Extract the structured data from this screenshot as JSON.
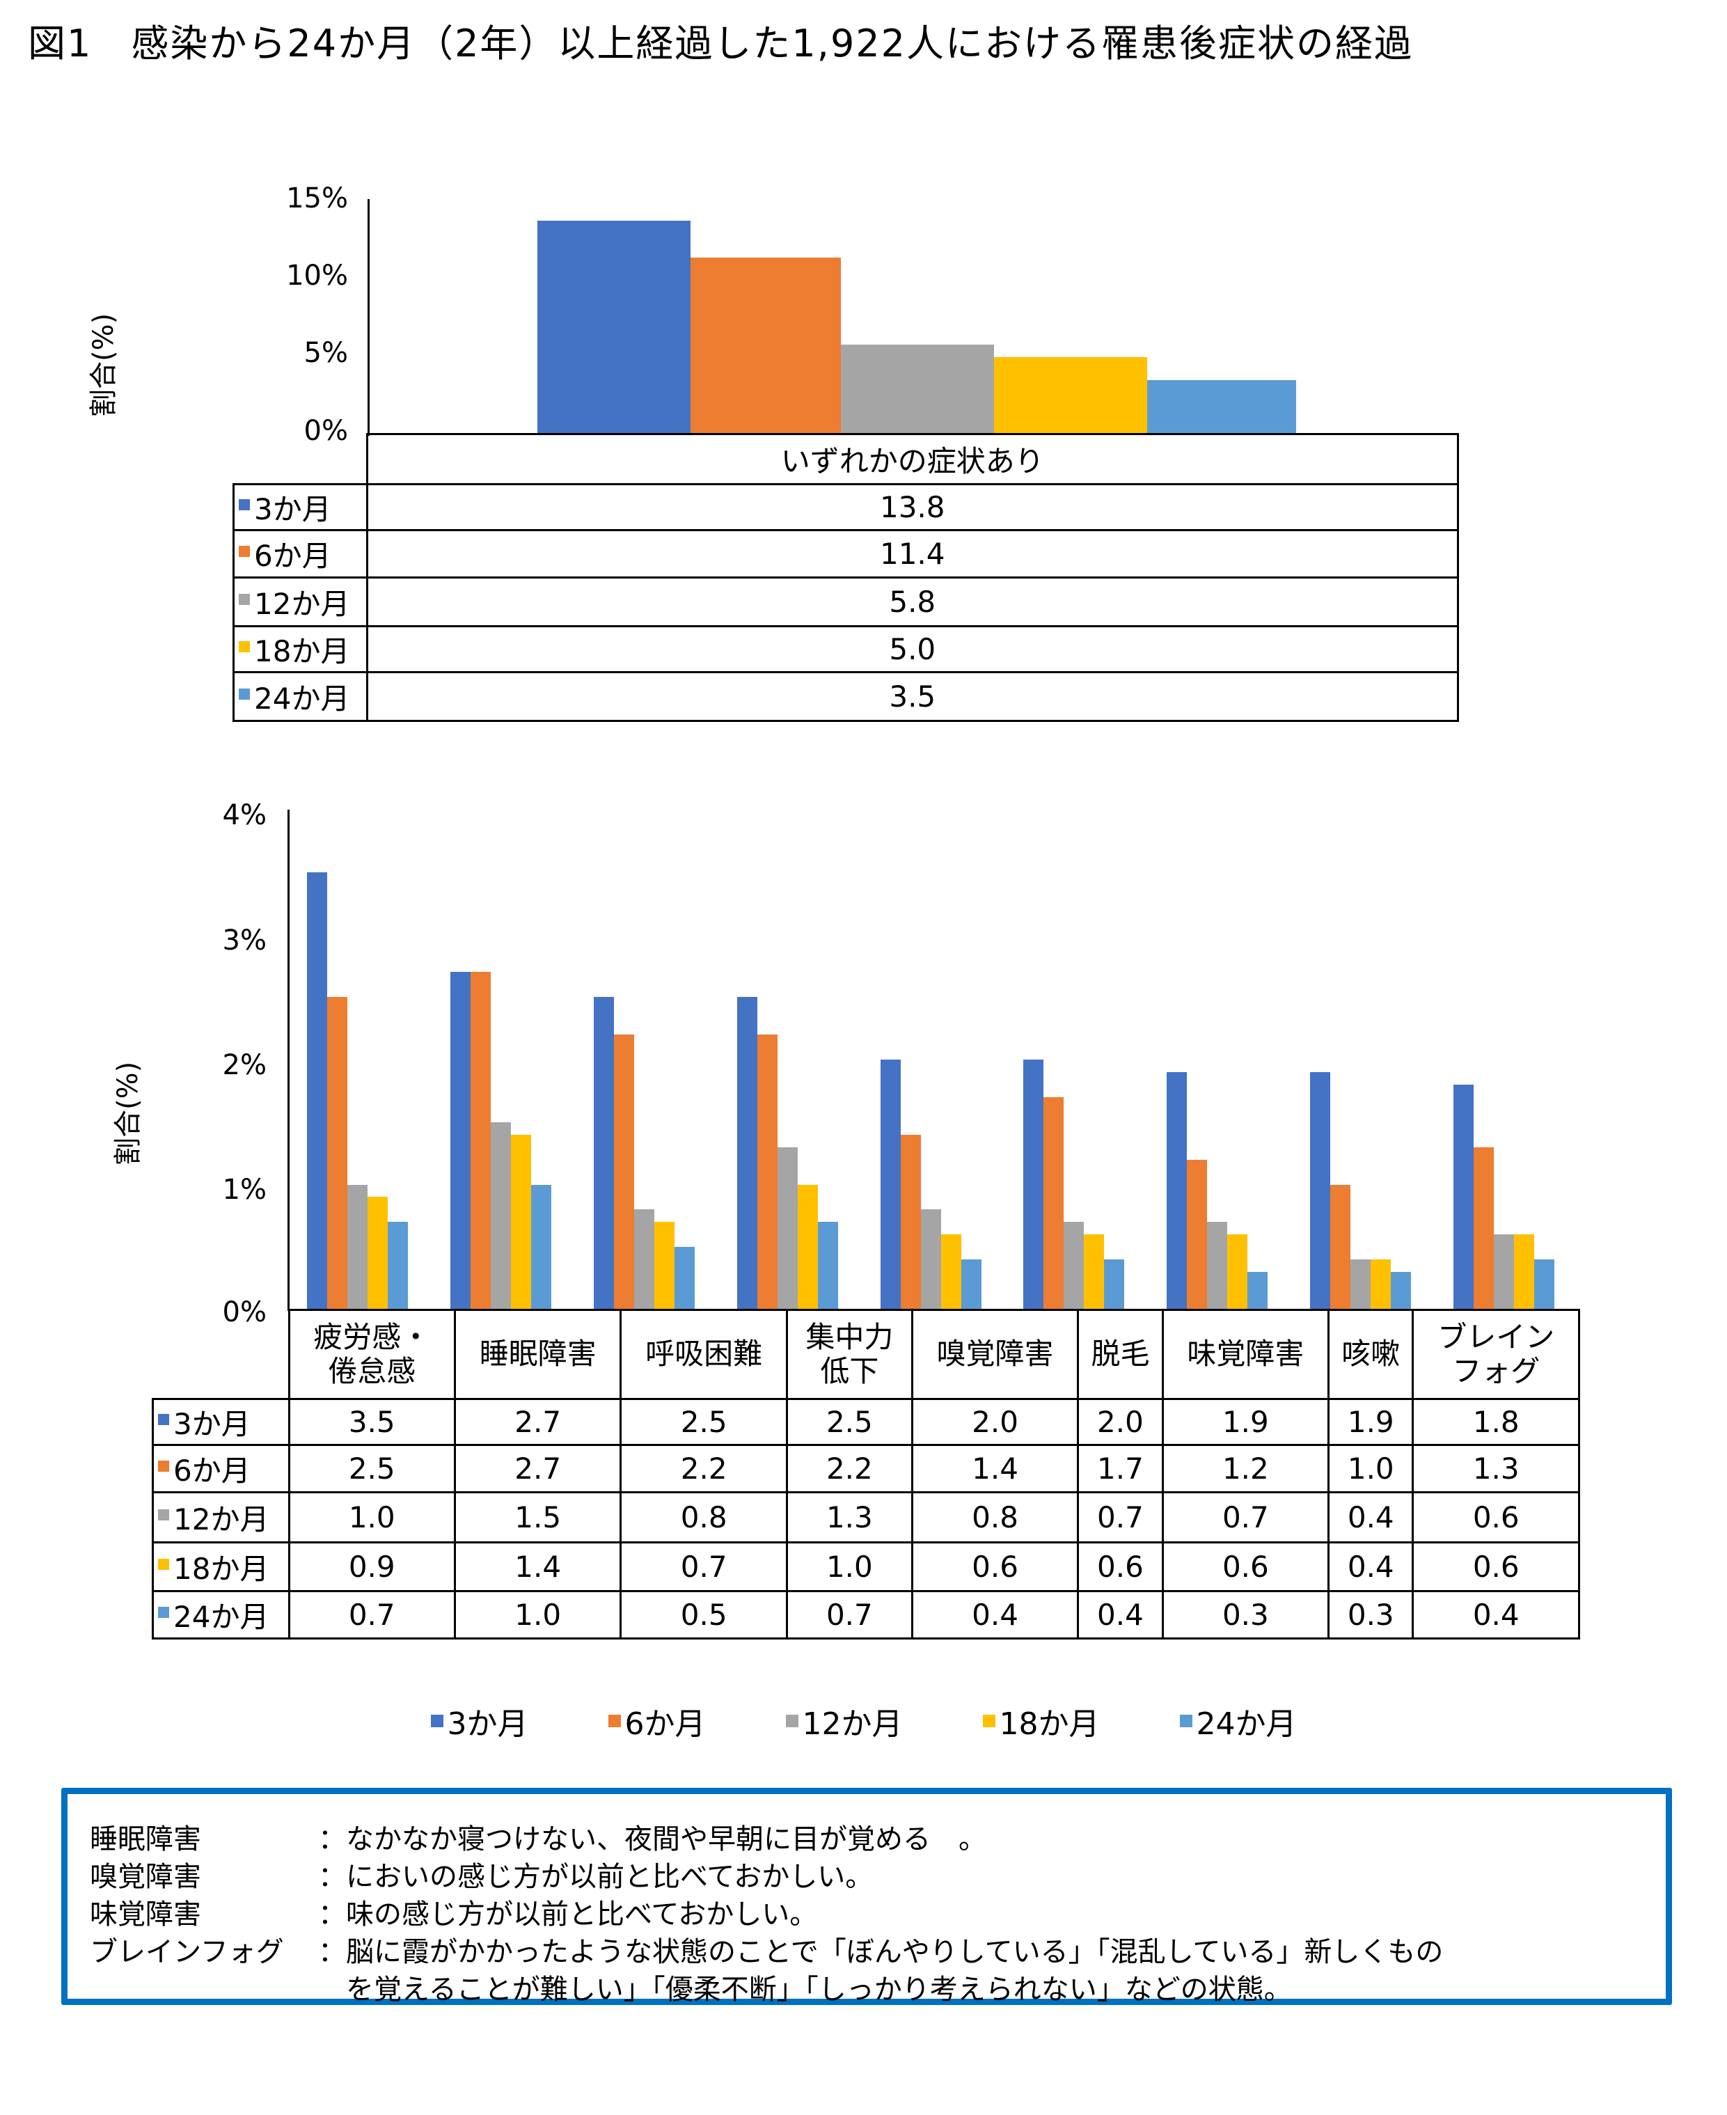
{
  "title": "図1　感染から24か月（2年）以上経過した1,922人における罹患後症状の経過",
  "colors": {
    "3m": "#4472c4",
    "6m": "#ed7d31",
    "12m": "#a5a5a5",
    "18m": "#ffc000",
    "24m": "#5b9bd5",
    "note_border": "#0070c0"
  },
  "series_labels": [
    "3か月",
    "6か月",
    "12か月",
    "18か月",
    "24か月"
  ],
  "top_chart": {
    "ylabel": "割合(%)",
    "yticks": [
      "15%",
      "10%",
      "5%",
      "0%"
    ],
    "category": "いずれかの症状あり",
    "values": [
      "13.8",
      "11.4",
      "5.8",
      "5.0",
      "3.5"
    ]
  },
  "bottom_chart": {
    "ylabel": "割合(%)",
    "yticks": [
      "4%",
      "3%",
      "2%",
      "1%",
      "0%"
    ],
    "categories": [
      [
        "疲労感・",
        "倦怠感"
      ],
      [
        "睡眠障害"
      ],
      [
        "呼吸困難"
      ],
      [
        "集中力",
        "低下"
      ],
      [
        "嗅覚障害"
      ],
      [
        "脱毛"
      ],
      [
        "味覚障害"
      ],
      [
        "咳嗽"
      ],
      [
        "ブレイン",
        "フォグ"
      ]
    ],
    "rows": [
      [
        "3.5",
        "2.7",
        "2.5",
        "2.5",
        "2.0",
        "2.0",
        "1.9",
        "1.9",
        "1.8"
      ],
      [
        "2.5",
        "2.7",
        "2.2",
        "2.2",
        "1.4",
        "1.7",
        "1.2",
        "1.0",
        "1.3"
      ],
      [
        "1.0",
        "1.5",
        "0.8",
        "1.3",
        "0.8",
        "0.7",
        "0.7",
        "0.4",
        "0.6"
      ],
      [
        "0.9",
        "1.4",
        "0.7",
        "1.0",
        "0.6",
        "0.6",
        "0.6",
        "0.4",
        "0.6"
      ],
      [
        "0.7",
        "1.0",
        "0.5",
        "0.7",
        "0.4",
        "0.4",
        "0.3",
        "0.3",
        "0.4"
      ]
    ]
  },
  "legend": [
    "3か月",
    "6か月",
    "12か月",
    "18か月",
    "24か月"
  ],
  "notes": [
    {
      "term": "睡眠障害",
      "def": "：なかなか寝つけない、夜間や早朝に目が覚める　。"
    },
    {
      "term": "嗅覚障害",
      "def": "：においの感じ方が以前と比べておかしい。"
    },
    {
      "term": "味覚障害",
      "def": "：味の感じ方が以前と比べておかしい。"
    },
    {
      "term": "ブレインフォグ",
      "def": "：脳に霞がかかったような状態のことで「ぼんやりしている」「混乱している」新しくもの"
    },
    {
      "term": "",
      "def": "　を覚えることが難しい」「優柔不断」「しっかり考えられない」などの状態。"
    }
  ],
  "chart_data": [
    {
      "type": "bar",
      "title": "いずれかの症状あり",
      "xlabel": "",
      "ylabel": "割合(%)",
      "ylim": [
        0,
        15
      ],
      "yticks": [
        "0%",
        "5%",
        "10%",
        "15%"
      ],
      "categories": [
        "いずれかの症状あり"
      ],
      "series": [
        {
          "name": "3か月",
          "values": [
            13.8
          ]
        },
        {
          "name": "6か月",
          "values": [
            11.4
          ]
        },
        {
          "name": "12か月",
          "values": [
            5.8
          ]
        },
        {
          "name": "18か月",
          "values": [
            5.0
          ]
        },
        {
          "name": "24か月",
          "values": [
            3.5
          ]
        }
      ],
      "grid": false,
      "legend_position": "data-table"
    },
    {
      "type": "bar",
      "title": "症状別",
      "xlabel": "",
      "ylabel": "割合(%)",
      "ylim": [
        0,
        4
      ],
      "yticks": [
        "0%",
        "1%",
        "2%",
        "3%",
        "4%"
      ],
      "categories": [
        "疲労感・倦怠感",
        "睡眠障害",
        "呼吸困難",
        "集中力低下",
        "嗅覚障害",
        "脱毛",
        "味覚障害",
        "咳嗽",
        "ブレインフォグ"
      ],
      "series": [
        {
          "name": "3か月",
          "values": [
            3.5,
            2.7,
            2.5,
            2.5,
            2.0,
            2.0,
            1.9,
            1.9,
            1.8
          ]
        },
        {
          "name": "6か月",
          "values": [
            2.5,
            2.7,
            2.2,
            2.2,
            1.4,
            1.7,
            1.2,
            1.0,
            1.3
          ]
        },
        {
          "name": "12か月",
          "values": [
            1.0,
            1.5,
            0.8,
            1.3,
            0.8,
            0.7,
            0.7,
            0.4,
            0.6
          ]
        },
        {
          "name": "18か月",
          "values": [
            0.9,
            1.4,
            0.7,
            1.0,
            0.6,
            0.6,
            0.6,
            0.4,
            0.6
          ]
        },
        {
          "name": "24か月",
          "values": [
            0.7,
            1.0,
            0.5,
            0.7,
            0.4,
            0.4,
            0.3,
            0.3,
            0.4
          ]
        }
      ],
      "grid": false,
      "legend_position": "bottom"
    }
  ]
}
